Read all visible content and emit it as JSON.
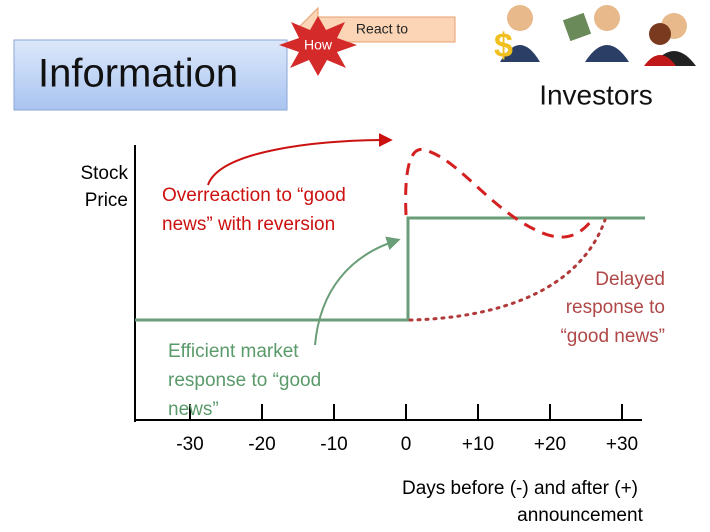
{
  "header": {
    "title": "Information",
    "arrow_label": "React to",
    "burst_label": "How",
    "investors": "Investors"
  },
  "axes": {
    "y_label_lines": [
      "Stock",
      "Price"
    ],
    "x_ticks": [
      "-30",
      "-20",
      "-10",
      "0",
      "+10",
      "+20",
      "+30"
    ],
    "x_label_lines": [
      "Days before (-) and after (+)",
      "announcement"
    ]
  },
  "annotations": {
    "overreaction": [
      "Overreaction to “good",
      "news” with reversion"
    ],
    "delayed": [
      "Delayed",
      "response to",
      "“good news”"
    ],
    "efficient": [
      "Efficient market",
      "response to “good",
      "news”"
    ]
  }
}
